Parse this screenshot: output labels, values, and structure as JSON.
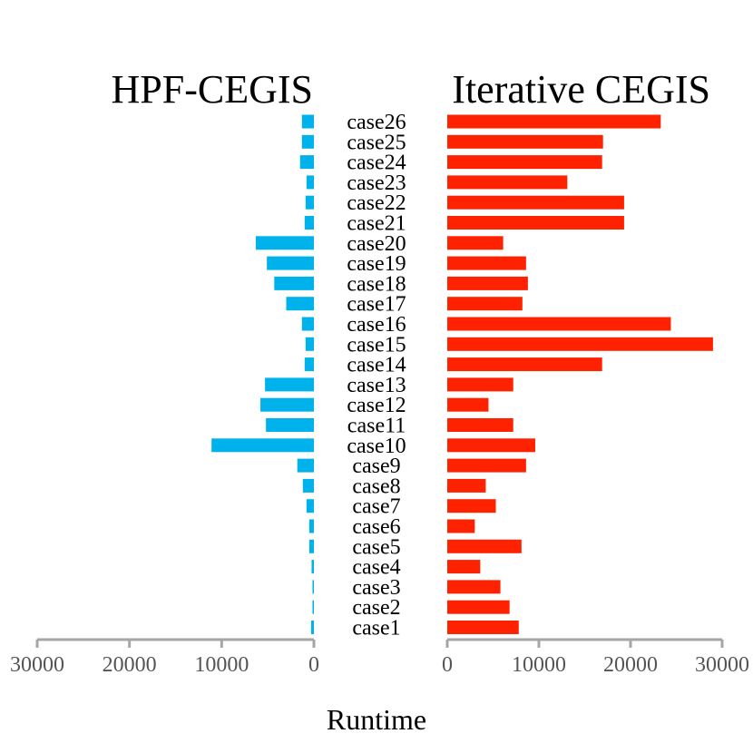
{
  "chart_data": [
    {
      "type": "bar",
      "orientation": "horizontal",
      "title": "HPF-CEGIS",
      "bar_direction": "leftward",
      "color": "#00b2ec",
      "categories": [
        "case1",
        "case2",
        "case3",
        "case4",
        "case5",
        "case6",
        "case7",
        "case8",
        "case9",
        "case10",
        "case11",
        "case12",
        "case13",
        "case14",
        "case15",
        "case16",
        "case17",
        "case18",
        "case19",
        "case20",
        "case21",
        "case22",
        "case23",
        "case24",
        "case25",
        "case26"
      ],
      "values": [
        300,
        150,
        150,
        250,
        500,
        500,
        800,
        1200,
        1800,
        11100,
        5200,
        5800,
        5300,
        1000,
        900,
        1300,
        3000,
        4300,
        5100,
        6300,
        1000,
        900,
        800,
        1500,
        1300,
        1300
      ],
      "xlim": [
        0,
        30000
      ],
      "ticks": [
        30000,
        20000,
        10000,
        0
      ],
      "tick_labels": [
        "30000",
        "20000",
        "10000",
        "0"
      ]
    },
    {
      "type": "bar",
      "orientation": "horizontal",
      "title": "Iterative CEGIS",
      "bar_direction": "rightward",
      "color": "#ff2200",
      "categories": [
        "case1",
        "case2",
        "case3",
        "case4",
        "case5",
        "case6",
        "case7",
        "case8",
        "case9",
        "case10",
        "case11",
        "case12",
        "case13",
        "case14",
        "case15",
        "case16",
        "case17",
        "case18",
        "case19",
        "case20",
        "case21",
        "case22",
        "case23",
        "case24",
        "case25",
        "case26"
      ],
      "values": [
        7800,
        6800,
        5800,
        3600,
        8100,
        3000,
        5300,
        4200,
        8600,
        9600,
        7200,
        4500,
        7200,
        16900,
        29000,
        24400,
        8200,
        8800,
        8600,
        6100,
        19300,
        19300,
        13100,
        16900,
        17000,
        23300
      ],
      "xlim": [
        0,
        30000
      ],
      "ticks": [
        0,
        10000,
        20000,
        30000
      ],
      "tick_labels": [
        "0",
        "10000",
        "20000",
        "30000"
      ]
    }
  ],
  "xlabel": "Runtime"
}
